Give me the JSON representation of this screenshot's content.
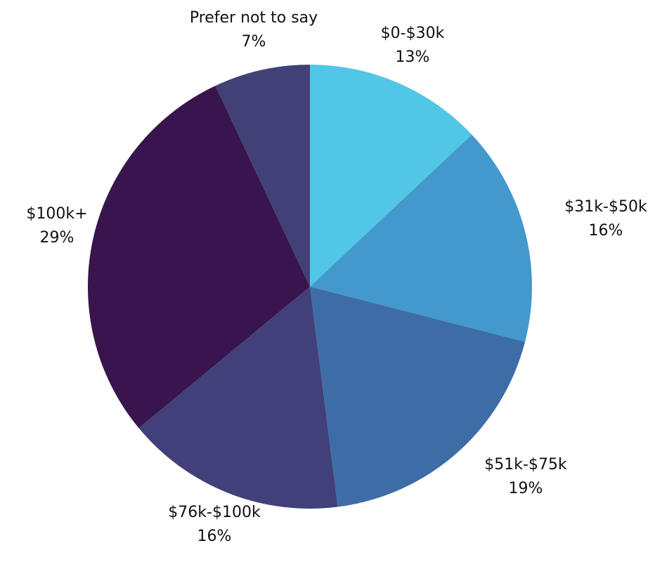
{
  "chart_data": {
    "type": "pie",
    "title": "",
    "start_angle_deg": 0,
    "direction": "clockwise",
    "slices": [
      {
        "label": "$0-$30k",
        "value": 13,
        "value_label": "13%",
        "color": "#51c6e6"
      },
      {
        "label": "$31k-$50k",
        "value": 16,
        "value_label": "16%",
        "color": "#4398cc"
      },
      {
        "label": "$51k-$75k",
        "value": 19,
        "value_label": "19%",
        "color": "#3e6ca7"
      },
      {
        "label": "$76k-$100k",
        "value": 16,
        "value_label": "16%",
        "color": "#41407a"
      },
      {
        "label": "$100k+",
        "value": 29,
        "value_label": "29%",
        "color": "#38154c"
      },
      {
        "label": "Prefer not to say",
        "value": 7,
        "value_label": "7%",
        "color": "#414077"
      }
    ]
  }
}
